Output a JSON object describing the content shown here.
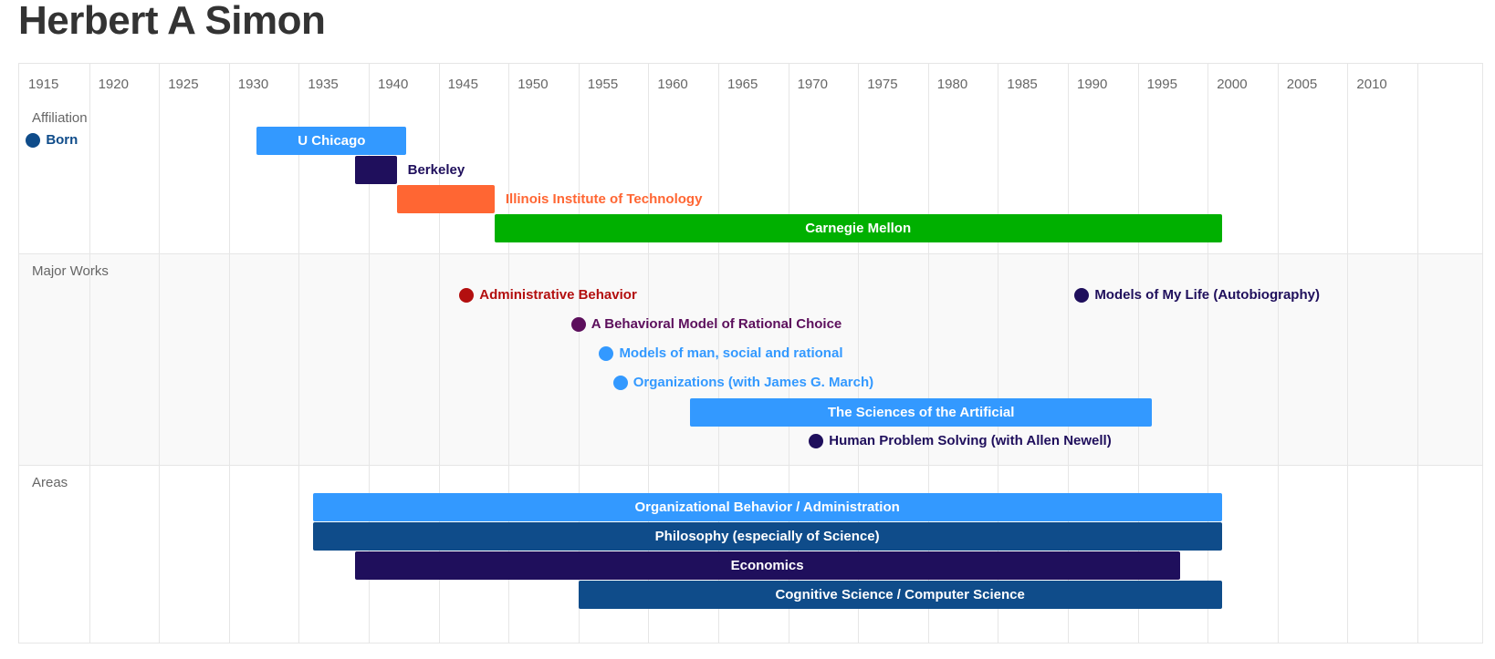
{
  "title": "Herbert A Simon",
  "chart_data": {
    "type": "timeline",
    "x_ticks": [
      1915,
      1920,
      1925,
      1930,
      1935,
      1940,
      1945,
      1950,
      1955,
      1960,
      1965,
      1970,
      1975,
      1980,
      1985,
      1990,
      1995,
      2000,
      2005,
      2010
    ],
    "x_range": [
      1915,
      2015
    ],
    "sections": [
      {
        "label": "Affiliation",
        "alt": false,
        "rows": 5,
        "items": [
          {
            "kind": "point",
            "label": "Born",
            "start": 1916,
            "row": 1,
            "color": "#0f4c8a"
          },
          {
            "kind": "bar",
            "label": "U Chicago",
            "start": 1932,
            "end": 1942.7,
            "row": 1,
            "color": "#3399ff",
            "label_pos": "inside"
          },
          {
            "kind": "bar",
            "label": "Berkeley",
            "start": 1939,
            "end": 1942,
            "row": 2,
            "color": "#1f0f5c",
            "label_pos": "right"
          },
          {
            "kind": "bar",
            "label": "Illinois Institute of Technology",
            "start": 1942,
            "end": 1949,
            "row": 3,
            "color": "#ff6633",
            "label_pos": "right"
          },
          {
            "kind": "bar",
            "label": "Carnegie Mellon",
            "start": 1949,
            "end": 2001,
            "row": 4,
            "color": "#00b000",
            "label_pos": "inside"
          }
        ]
      },
      {
        "label": "Major Works",
        "alt": true,
        "rows": 7,
        "items": [
          {
            "kind": "point",
            "label": "Administrative Behavior",
            "start": 1947,
            "row": 1,
            "color": "#b30f0f"
          },
          {
            "kind": "point",
            "label": "Models of My Life (Autobiography)",
            "start": 1991,
            "row": 1,
            "color": "#1f0f5c"
          },
          {
            "kind": "point",
            "label": "A Behavioral Model of Rational Choice",
            "start": 1955,
            "row": 2,
            "color": "#5c0f5c"
          },
          {
            "kind": "point",
            "label": "Models of man, social and rational",
            "start": 1957,
            "row": 3,
            "color": "#3399ff"
          },
          {
            "kind": "point",
            "label": "Organizations (with James G. March)",
            "start": 1958,
            "row": 4,
            "color": "#3399ff"
          },
          {
            "kind": "bar",
            "label": "The Sciences of the Artificial",
            "start": 1963,
            "end": 1996,
            "row": 5,
            "color": "#3399ff",
            "label_pos": "inside"
          },
          {
            "kind": "point",
            "label": "Human Problem Solving (with Allen Newell)",
            "start": 1972,
            "row": 6,
            "color": "#1f0f5c"
          }
        ]
      },
      {
        "label": "Areas",
        "alt": false,
        "rows": 5,
        "items": [
          {
            "kind": "bar",
            "label": "Organizational Behavior / Administration",
            "start": 1936,
            "end": 2001,
            "row": 1,
            "color": "#3399ff",
            "label_pos": "inside"
          },
          {
            "kind": "bar",
            "label": "Philosophy (especially of Science)",
            "start": 1936,
            "end": 2001,
            "row": 2,
            "color": "#0f4c8a",
            "label_pos": "inside"
          },
          {
            "kind": "bar",
            "label": "Economics",
            "start": 1939,
            "end": 1998,
            "row": 3,
            "color": "#1f0f5c",
            "label_pos": "inside"
          },
          {
            "kind": "bar",
            "label": "Cognitive Science / Computer Science",
            "start": 1955,
            "end": 2001,
            "row": 4,
            "color": "#0f4c8a",
            "label_pos": "inside"
          }
        ]
      }
    ]
  }
}
